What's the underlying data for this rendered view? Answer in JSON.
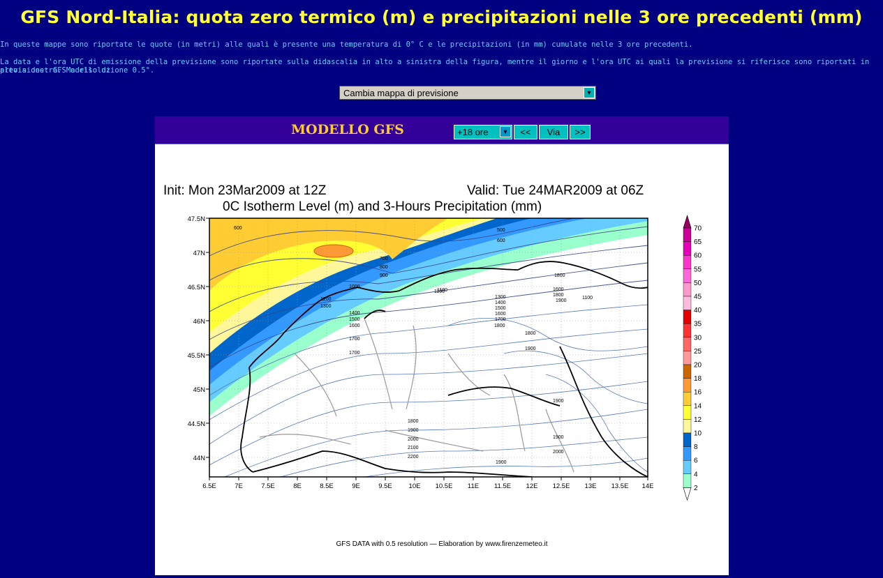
{
  "page": {
    "title": "GFS Nord-Italia: quota zero termico (m) e precipitazioni nelle 3 ore precedenti (mm)",
    "intro_1": "In queste mappe sono riportate le quote (in metri) alle quali è presente una temperatura di 0° C e le precipitazioni (in mm) cumulate nelle 3 ore precedenti.",
    "intro_2a": "La data e l'ora UTC di emissione della previsione sono riportate sulla didascalia in alto a sinistra della figura, mentre il giorno e l'ora UTC ai quali la previsione si riferisce sono riportati in alto a destra. Modello di",
    "intro_2b": "previsione: GFS a risoluzione 0.5°."
  },
  "controls": {
    "map_select": "Cambia mappa di previsione",
    "model_label": "MODELLO GFS",
    "hours_select": "+18 ore",
    "prev_button": "<<",
    "go_button": "Via",
    "next_button": ">>"
  },
  "map": {
    "init_text": "Init: Mon 23Mar2009 at 12Z",
    "valid_text": "Valid: Tue 24MAR2009 at 06Z",
    "subtitle": "0C Isotherm Level (m) and 3-Hours Precipitation (mm)",
    "footer": "GFS DATA with 0.5 resolution — Elaboration by www.firenzemeteo.it",
    "lat_labels": [
      "47.5N",
      "47N",
      "46.5N",
      "46N",
      "45.5N",
      "45N",
      "44.5N",
      "44N"
    ],
    "lon_labels": [
      "6.5E",
      "7E",
      "7.5E",
      "8E",
      "8.5E",
      "9E",
      "9.5E",
      "10E",
      "10.5E",
      "11E",
      "11.5E",
      "12E",
      "12.5E",
      "13E",
      "13.5E",
      "14E"
    ],
    "contour_labels": [
      "600",
      "500",
      "600",
      "700",
      "800",
      "900",
      "1000",
      "1100",
      "1200",
      "1300",
      "1400",
      "1500",
      "1600",
      "1700",
      "1100",
      "1300",
      "1400",
      "1500",
      "1600",
      "1700",
      "1800",
      "1900",
      "1600",
      "1800",
      "1900",
      "1800",
      "1900",
      "2000",
      "2100",
      "2200",
      "1900",
      "2000",
      "1900",
      "1800",
      "1100",
      "1800",
      "1700",
      "1900"
    ],
    "legend": {
      "labels": [
        "70",
        "65",
        "60",
        "55",
        "50",
        "45",
        "40",
        "35",
        "30",
        "25",
        "20",
        "18",
        "16",
        "14",
        "12",
        "10",
        "8",
        "6",
        "4",
        "2"
      ],
      "colors": [
        "#990066",
        "#cc0099",
        "#e600b8",
        "#ff33cc",
        "#ff66d9",
        "#ff99cc",
        "#ffbbdd",
        "#e60000",
        "#ff3333",
        "#ff6666",
        "#ff9999",
        "#cc6600",
        "#ff9933",
        "#ffcc33",
        "#ffff33",
        "#fff799",
        "#0066cc",
        "#3399ff",
        "#66ccff",
        "#99ffcc",
        "#ffffff"
      ]
    }
  }
}
